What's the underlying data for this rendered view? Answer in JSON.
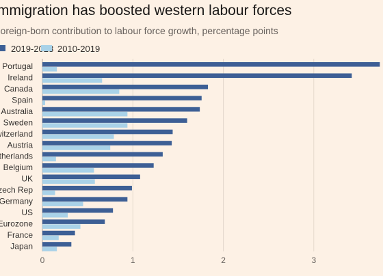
{
  "header": {
    "title": "Immigration has boosted western labour forces",
    "subtitle": "Foreign-born contribution to labour force growth, percentage points"
  },
  "legend": {
    "items": [
      {
        "label": "2019-2023",
        "color": "#3d5f95"
      },
      {
        "label": "2010-2019",
        "color": "#a9d2e8"
      }
    ]
  },
  "chart_data": {
    "type": "bar",
    "orientation": "horizontal",
    "title": "Immigration has boosted western labour forces",
    "subtitle": "Foreign-born contribution to labour force growth, percentage points",
    "xlabel": "",
    "ylabel": "",
    "xlim": [
      0,
      3.75
    ],
    "x_ticks": [
      "0",
      "1",
      "2",
      "3"
    ],
    "grid": true,
    "legend_position": "top-left",
    "categories": [
      "Portugal",
      "Ireland",
      "Canada",
      "Spain",
      "Australia",
      "Sweden",
      "Switzerland",
      "Austria",
      "Netherlands",
      "Belgium",
      "UK",
      "Czech Rep",
      "Germany",
      "US",
      "Eurozone",
      "France",
      "Japan"
    ],
    "series": [
      {
        "name": "2019-2023",
        "color": "#3d5f95",
        "values": [
          3.73,
          3.42,
          1.83,
          1.76,
          1.74,
          1.6,
          1.44,
          1.43,
          1.33,
          1.23,
          1.08,
          0.99,
          0.94,
          0.78,
          0.69,
          0.36,
          0.32
        ]
      },
      {
        "name": "2010-2019",
        "color": "#a9d2e8",
        "values": [
          0.16,
          0.66,
          0.85,
          0.03,
          0.94,
          0.94,
          0.79,
          0.75,
          0.15,
          0.57,
          0.58,
          0.14,
          0.45,
          0.28,
          0.42,
          0.18,
          0.16
        ]
      }
    ]
  }
}
